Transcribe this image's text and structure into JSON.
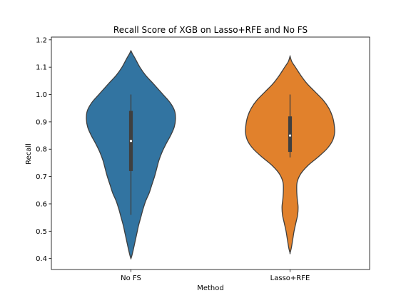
{
  "chart_data": {
    "type": "violin",
    "title": "Recall Score of XGB on Lasso+RFE and No FS",
    "xlabel": "Method",
    "ylabel": "Recall",
    "categories": [
      "No FS",
      "Lasso+RFE"
    ],
    "colors": [
      "#3274a1",
      "#e1812c"
    ],
    "ylim": [
      0.36,
      1.21
    ],
    "yticks": [
      0.4,
      0.5,
      0.6,
      0.7,
      0.8,
      0.9,
      1.0,
      1.1,
      1.2
    ],
    "grid": false,
    "violins": [
      {
        "name": "No FS",
        "box": {
          "min": 0.56,
          "q1": 0.72,
          "median": 0.83,
          "q3": 0.94,
          "max": 1.0
        },
        "density_profile": [
          [
            1.16,
            0.0
          ],
          [
            1.15,
            0.03
          ],
          [
            1.13,
            0.1
          ],
          [
            1.1,
            0.2
          ],
          [
            1.07,
            0.33
          ],
          [
            1.04,
            0.5
          ],
          [
            1.0,
            0.72
          ],
          [
            0.97,
            0.88
          ],
          [
            0.94,
            0.98
          ],
          [
            0.91,
            1.0
          ],
          [
            0.88,
            0.97
          ],
          [
            0.85,
            0.89
          ],
          [
            0.82,
            0.79
          ],
          [
            0.79,
            0.7
          ],
          [
            0.76,
            0.63
          ],
          [
            0.73,
            0.58
          ],
          [
            0.7,
            0.53
          ],
          [
            0.67,
            0.47
          ],
          [
            0.64,
            0.41
          ],
          [
            0.61,
            0.33
          ],
          [
            0.58,
            0.27
          ],
          [
            0.55,
            0.22
          ],
          [
            0.52,
            0.17
          ],
          [
            0.49,
            0.13
          ],
          [
            0.46,
            0.09
          ],
          [
            0.43,
            0.05
          ],
          [
            0.41,
            0.02
          ],
          [
            0.4,
            0.0
          ]
        ]
      },
      {
        "name": "Lasso+RFE",
        "box": {
          "min": 0.77,
          "q1": 0.79,
          "median": 0.85,
          "q3": 0.92,
          "max": 1.0
        },
        "density_profile": [
          [
            1.14,
            0.0
          ],
          [
            1.12,
            0.04
          ],
          [
            1.1,
            0.12
          ],
          [
            1.07,
            0.24
          ],
          [
            1.04,
            0.38
          ],
          [
            1.01,
            0.56
          ],
          [
            0.98,
            0.74
          ],
          [
            0.95,
            0.87
          ],
          [
            0.92,
            0.95
          ],
          [
            0.89,
            0.99
          ],
          [
            0.86,
            1.0
          ],
          [
            0.83,
            0.95
          ],
          [
            0.8,
            0.82
          ],
          [
            0.77,
            0.62
          ],
          [
            0.74,
            0.4
          ],
          [
            0.71,
            0.24
          ],
          [
            0.68,
            0.16
          ],
          [
            0.65,
            0.15
          ],
          [
            0.62,
            0.16
          ],
          [
            0.59,
            0.18
          ],
          [
            0.56,
            0.17
          ],
          [
            0.53,
            0.13
          ],
          [
            0.5,
            0.09
          ],
          [
            0.47,
            0.06
          ],
          [
            0.44,
            0.03
          ],
          [
            0.42,
            0.0
          ]
        ]
      }
    ]
  }
}
